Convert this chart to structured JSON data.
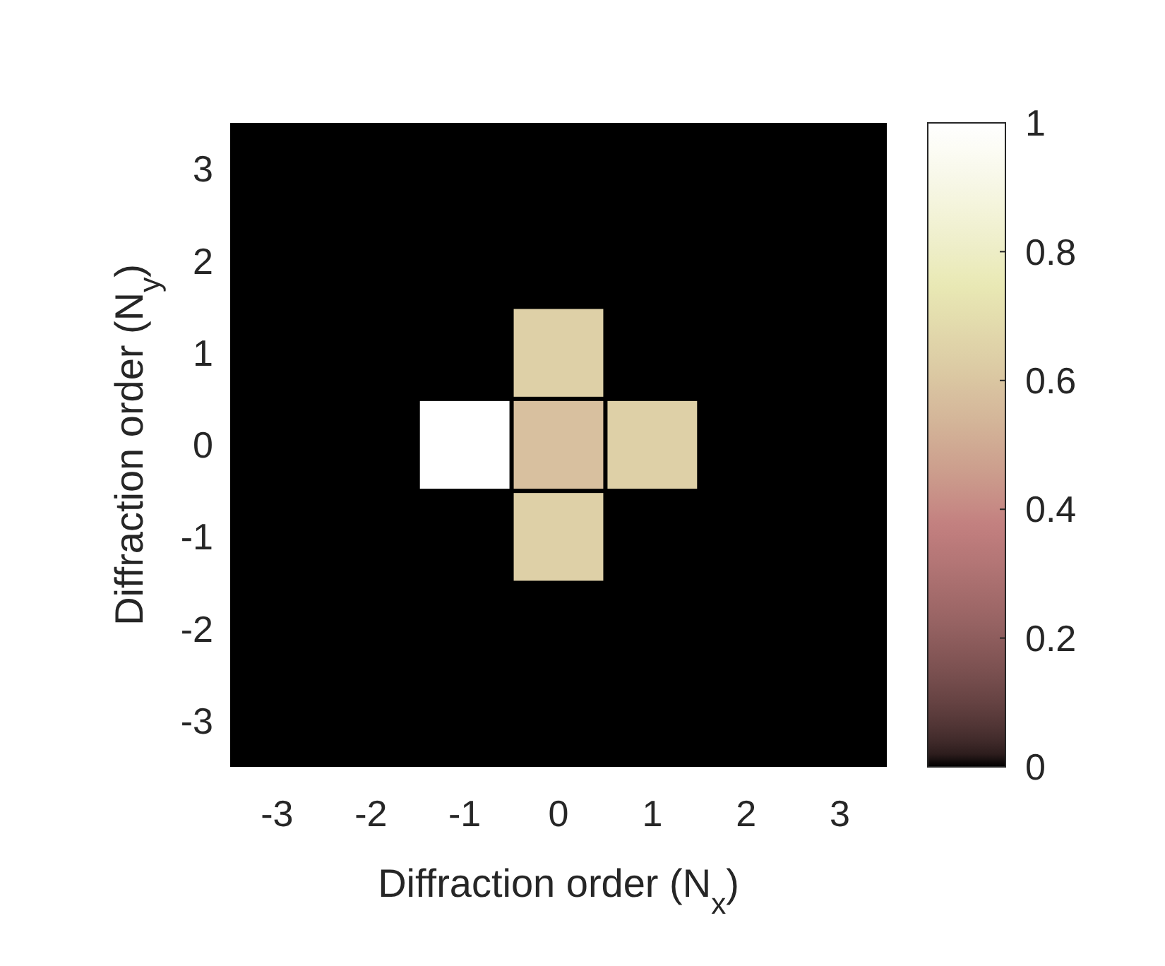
{
  "chart_data": {
    "type": "heatmap",
    "xlabel": "Diffraction order (N$_{x}$)",
    "ylabel": "Diffraction order (N$_{y}$)",
    "categories": [
      "-3",
      "-2",
      "-1",
      "0",
      "1",
      "2",
      "3"
    ],
    "y_categories": [
      "3",
      "2",
      "1",
      "0",
      "-1",
      "-2",
      "-3"
    ],
    "cells": [
      [
        0,
        0,
        0,
        0,
        0,
        0,
        0
      ],
      [
        0,
        0,
        0,
        0,
        0,
        0,
        0
      ],
      [
        0,
        0,
        0,
        0.64,
        0,
        0,
        0
      ],
      [
        0,
        0,
        1,
        0.58,
        0.64,
        0,
        0
      ],
      [
        0,
        0,
        0,
        0.64,
        0,
        0,
        0
      ],
      [
        0,
        0,
        0,
        0,
        0,
        0,
        0
      ],
      [
        0,
        0,
        0,
        0,
        0,
        0,
        0
      ]
    ],
    "clim": [
      0,
      1
    ],
    "cticks": [
      0,
      0.2,
      0.4,
      0.6,
      0.8,
      1
    ]
  }
}
